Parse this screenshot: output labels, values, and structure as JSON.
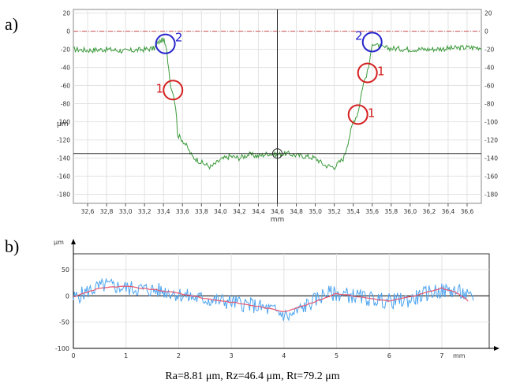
{
  "panels": {
    "a": "a)",
    "b": "b)"
  },
  "colors": {
    "profile_a": "#3a9a3a",
    "raw_b": "#4aa3f0",
    "mean_b": "#e8566e",
    "marker_1": "#d42020",
    "marker_2": "#2424cc",
    "reference": "#d05050"
  },
  "caption": "Ra=8.81 μm, Rz=46.4 μm, Rt=79.2 μm",
  "chart_data": [
    {
      "id": "a",
      "type": "line",
      "ylabel": "μm",
      "xlabel": "mm",
      "xlim": [
        32.45,
        36.75
      ],
      "ylim": [
        -190,
        24
      ],
      "xticks": [
        32.6,
        32.8,
        33.0,
        33.2,
        33.4,
        33.6,
        33.8,
        34.0,
        34.2,
        34.4,
        34.6,
        34.8,
        35.0,
        35.2,
        35.4,
        35.6,
        35.8,
        36.0,
        36.2,
        36.4,
        36.6
      ],
      "xtick_labels": [
        "32,6",
        "32,8",
        "33,0",
        "33,2",
        "33,4",
        "33,6",
        "33,8",
        "34,0",
        "34,2",
        "34,4",
        "34,6",
        "34,8",
        "35,0",
        "35,2",
        "35,4",
        "35,6",
        "35,8",
        "36,0",
        "36,2",
        "36,4",
        "36,6"
      ],
      "yticks": [
        20,
        0,
        -20,
        -40,
        -60,
        -80,
        -100,
        -120,
        -140,
        -160,
        -180
      ],
      "ytick_labels": [
        "20",
        "0",
        "-20",
        "-40",
        "-60",
        "-80",
        "-100",
        "-120",
        "-140",
        "-160",
        "-180"
      ],
      "grid": true,
      "reference_line_y": 0,
      "cursor": {
        "x": 34.6,
        "y": -135
      },
      "series": [
        {
          "x": [
            32.45,
            32.6,
            32.8,
            33.0,
            33.2,
            33.3,
            33.35,
            33.4,
            33.43,
            33.46,
            33.48,
            33.5,
            33.53,
            33.55,
            33.6,
            33.65,
            33.7,
            33.8,
            33.9,
            34.0,
            34.1,
            34.2,
            34.3,
            34.4,
            34.5,
            34.6,
            34.7,
            34.8,
            34.9,
            35.0,
            35.1,
            35.2,
            35.3,
            35.35,
            35.4,
            35.45,
            35.5,
            35.55,
            35.58,
            35.6,
            35.65,
            35.7,
            35.8,
            36.0,
            36.2,
            36.4,
            36.6,
            36.75
          ],
          "y": [
            -20,
            -21,
            -20,
            -22,
            -20,
            -19,
            -12,
            -9,
            -20,
            -45,
            -64,
            -66,
            -85,
            -115,
            -120,
            -128,
            -138,
            -145,
            -150,
            -142,
            -138,
            -140,
            -136,
            -138,
            -135,
            -136,
            -135,
            -137,
            -138,
            -140,
            -148,
            -150,
            -140,
            -120,
            -100,
            -90,
            -60,
            -45,
            -30,
            -12,
            -16,
            -18,
            -19,
            -20,
            -20,
            -19,
            -18,
            -18
          ]
        }
      ],
      "annotations": [
        {
          "label": "2",
          "x": 33.42,
          "y": -14,
          "color": "#2424cc"
        },
        {
          "label": "1",
          "x": 33.5,
          "y": -65,
          "color": "#d42020"
        },
        {
          "label": "2",
          "x": 35.6,
          "y": -12,
          "color": "#2424cc"
        },
        {
          "label": "1",
          "x": 35.55,
          "y": -46,
          "color": "#d42020"
        },
        {
          "label": "1",
          "x": 35.45,
          "y": -92,
          "color": "#d42020"
        }
      ]
    },
    {
      "id": "b",
      "type": "line",
      "ylabel": "μm",
      "xlabel": "mm",
      "xlim": [
        0,
        7.9
      ],
      "ylim": [
        -100,
        80
      ],
      "xticks": [
        0,
        1,
        2,
        3,
        4,
        5,
        6,
        7
      ],
      "xtick_labels": [
        "0",
        "1",
        "2",
        "3",
        "4",
        "5",
        "6",
        "7"
      ],
      "yticks": [
        50,
        0,
        -50,
        -100
      ],
      "ytick_labels": [
        "50",
        "0",
        "-50",
        "-100"
      ],
      "grid": true,
      "series": [
        {
          "x": [
            0,
            0.3,
            0.6,
            1.0,
            1.4,
            1.8,
            2.2,
            2.6,
            3.0,
            3.4,
            3.8,
            4.1,
            4.4,
            4.8,
            5.2,
            5.6,
            6.0,
            6.4,
            6.8,
            7.2,
            7.4,
            7.6
          ],
          "y": [
            -5,
            10,
            20,
            15,
            12,
            8,
            -2,
            -8,
            -12,
            -18,
            -28,
            -40,
            -20,
            5,
            2,
            -5,
            -10,
            -8,
            8,
            10,
            5,
            -10
          ]
        },
        {
          "x": [
            0,
            0.5,
            1.0,
            1.5,
            2.0,
            2.5,
            3.0,
            3.5,
            4.0,
            4.5,
            5.0,
            5.5,
            6.0,
            6.5,
            7.0,
            7.3,
            7.5
          ],
          "y": [
            -2,
            15,
            18,
            12,
            5,
            -5,
            -12,
            -20,
            -30,
            -15,
            5,
            -3,
            -10,
            0,
            15,
            5,
            -10
          ]
        }
      ]
    }
  ]
}
